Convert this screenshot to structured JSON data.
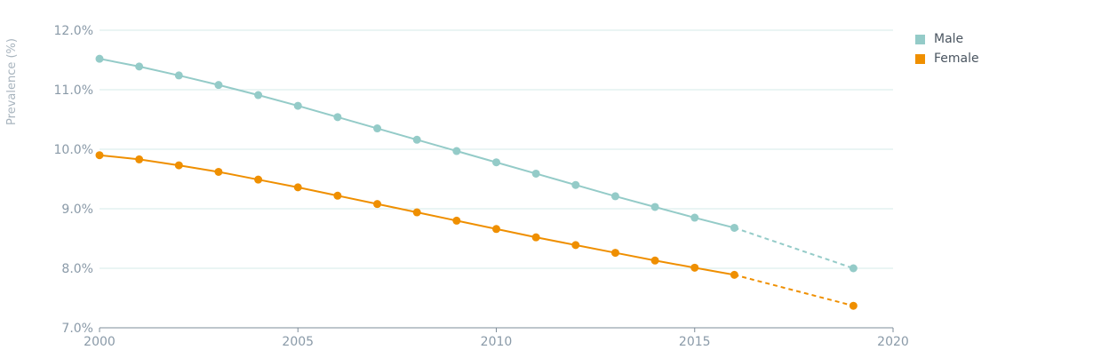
{
  "chart_data": {
    "type": "line",
    "ylabel": "Prevalence (%)",
    "xlabel": "",
    "xlim": [
      2000,
      2020
    ],
    "ylim": [
      7.0,
      12.0
    ],
    "x_ticks": [
      "2000",
      "2005",
      "2010",
      "2015",
      "2020"
    ],
    "y_ticks": [
      "7.0%",
      "8.0%",
      "9.0%",
      "10.0%",
      "11.0%",
      "12.0%"
    ],
    "grid": "horizontal",
    "legend_position": "top-right",
    "series": [
      {
        "name": "Male",
        "color": "#94cbc8",
        "x": [
          2000,
          2001,
          2002,
          2003,
          2004,
          2005,
          2006,
          2007,
          2008,
          2009,
          2010,
          2011,
          2012,
          2013,
          2014,
          2015,
          2016,
          2019
        ],
        "values": [
          11.52,
          11.39,
          11.24,
          11.08,
          10.91,
          10.73,
          10.54,
          10.35,
          10.16,
          9.97,
          9.78,
          9.59,
          9.4,
          9.21,
          9.03,
          8.85,
          8.68,
          8.0
        ],
        "dashed_from_x": 2016
      },
      {
        "name": "Female",
        "color": "#ef8f00",
        "x": [
          2000,
          2001,
          2002,
          2003,
          2004,
          2005,
          2006,
          2007,
          2008,
          2009,
          2010,
          2011,
          2012,
          2013,
          2014,
          2015,
          2016,
          2019
        ],
        "values": [
          9.9,
          9.83,
          9.73,
          9.62,
          9.49,
          9.36,
          9.22,
          9.08,
          8.94,
          8.8,
          8.66,
          8.52,
          8.39,
          8.26,
          8.13,
          8.01,
          7.89,
          7.37
        ],
        "dashed_from_x": 2016
      }
    ]
  }
}
